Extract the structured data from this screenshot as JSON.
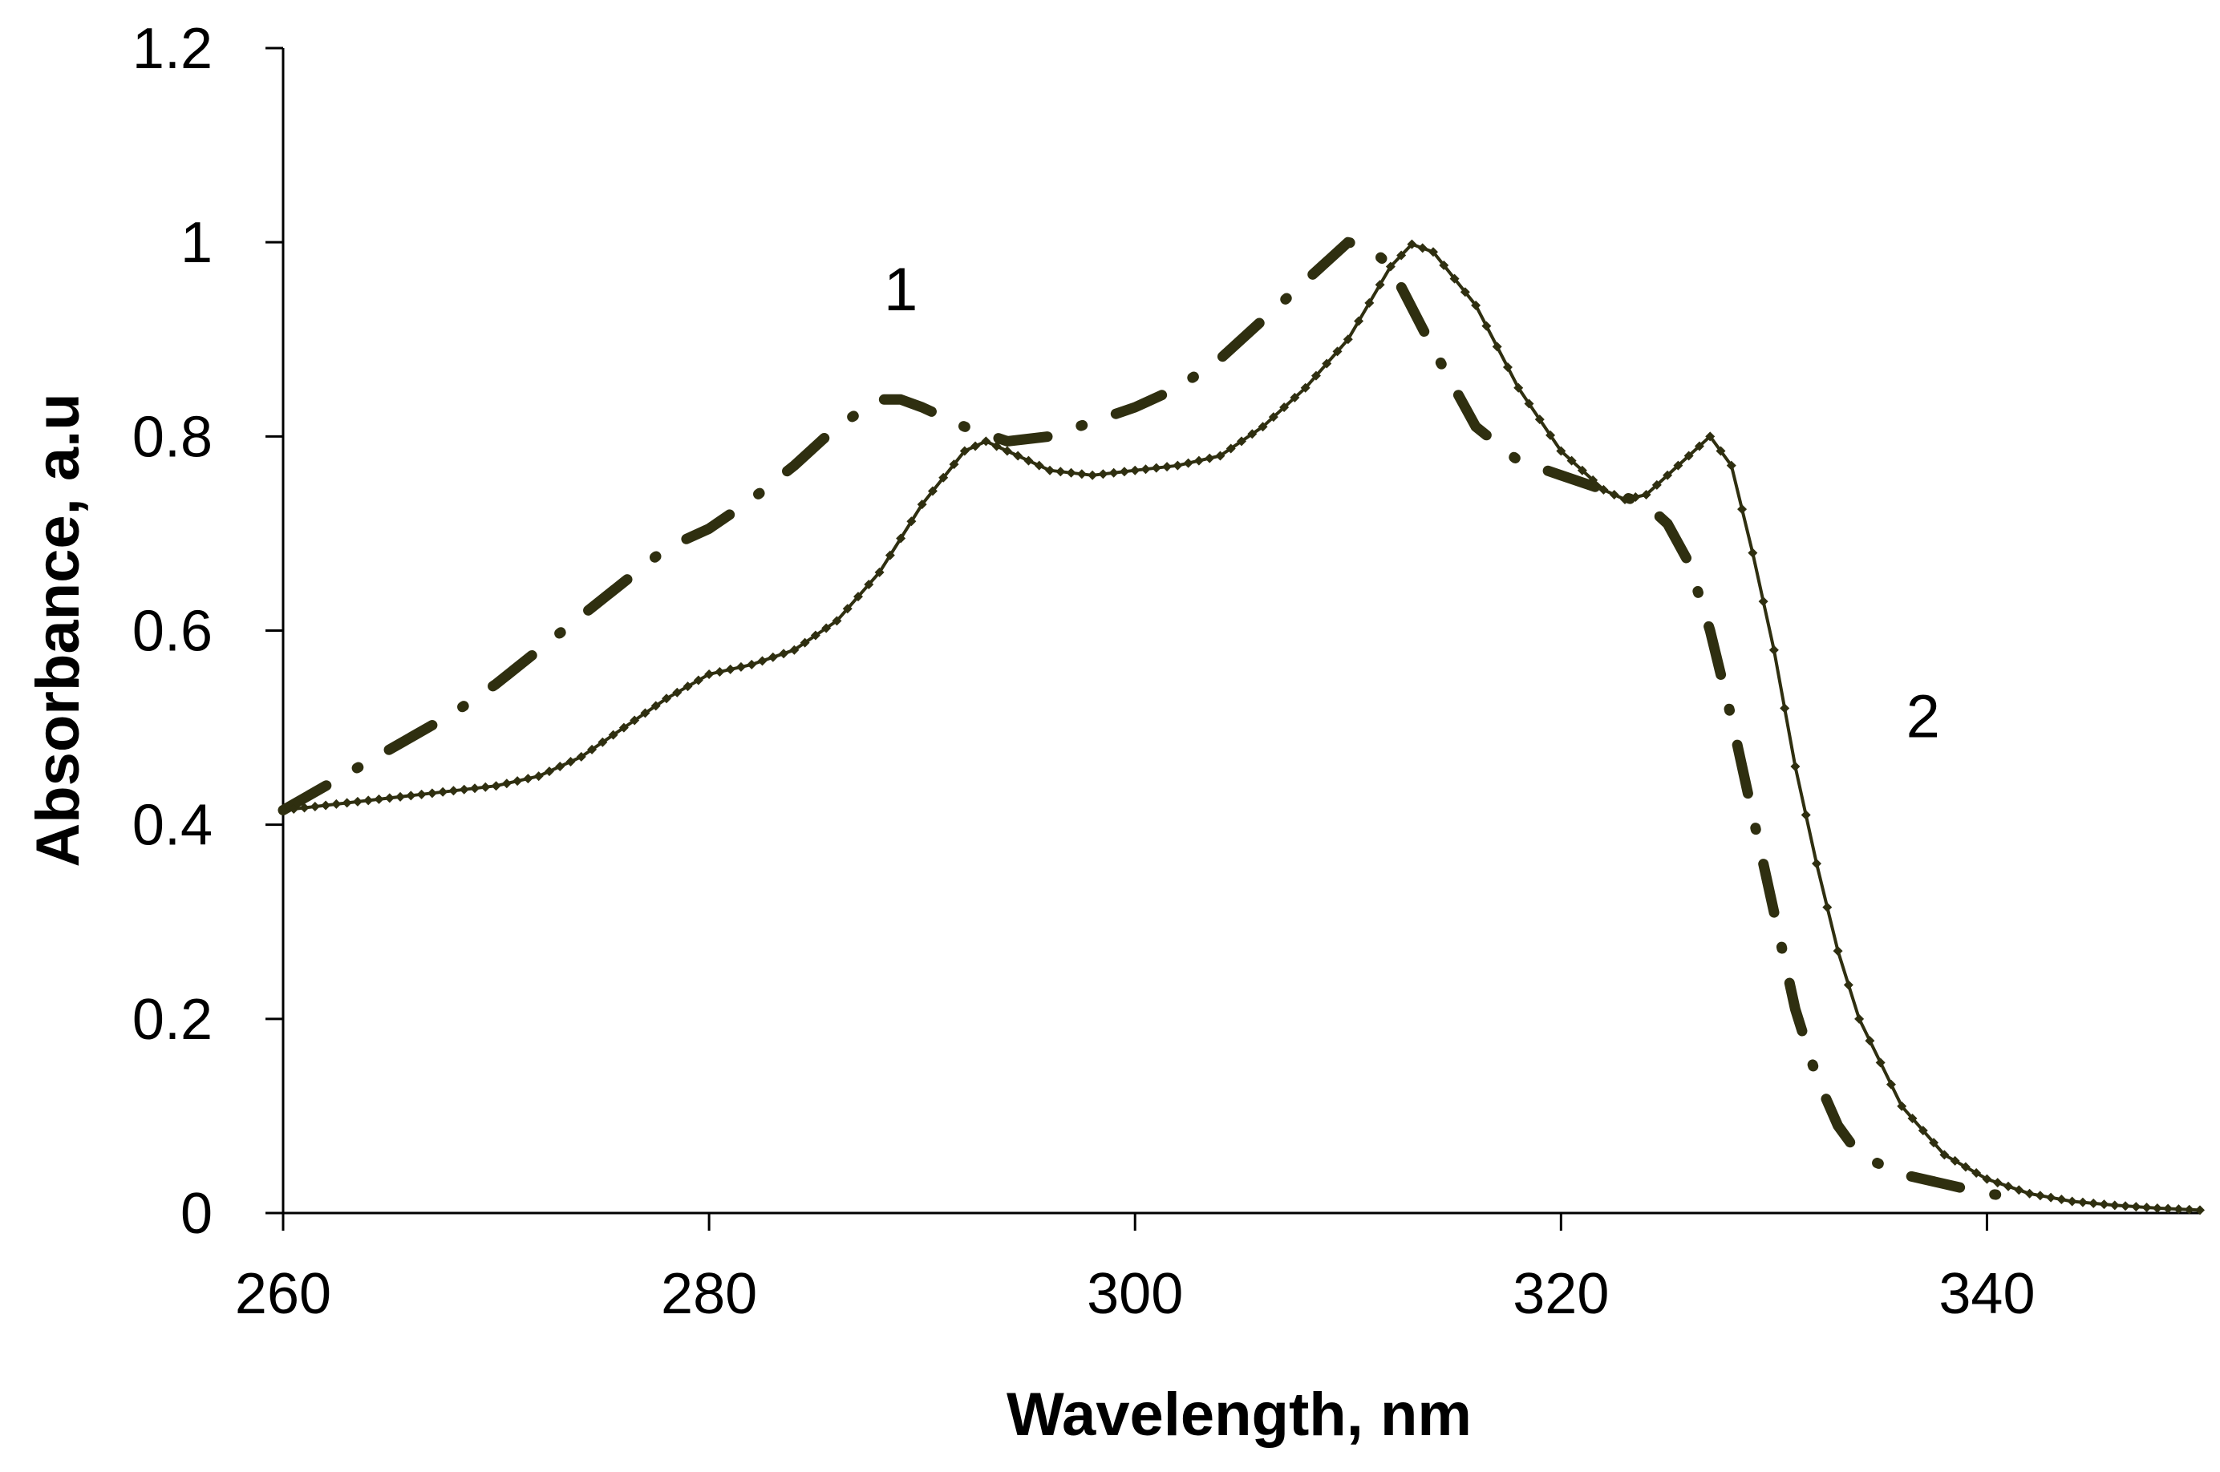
{
  "chart_data": {
    "type": "line",
    "title": "",
    "xlabel": "Wavelength, nm",
    "ylabel": "Absorbance, a.u",
    "xlim": [
      260,
      350
    ],
    "ylim": [
      0,
      1.2
    ],
    "xticks": [
      260,
      280,
      300,
      320,
      340
    ],
    "yticks": [
      0,
      0.2,
      0.4,
      0.6,
      0.8,
      1,
      1.2
    ],
    "xtick_labels": [
      "260",
      "280",
      "300",
      "320",
      "340"
    ],
    "ytick_labels": [
      "0",
      "0.2",
      "0.4",
      "0.6",
      "0.8",
      "1",
      "1.2"
    ],
    "grid": false,
    "annotations": [
      {
        "text": "1",
        "x": 289,
        "y": 0.93
      },
      {
        "text": "2",
        "x": 337,
        "y": 0.49
      }
    ],
    "series": [
      {
        "name": "1",
        "style": "dash-dot",
        "color": "#2f2f10",
        "x": [
          260,
          262,
          264,
          266,
          268,
          270,
          272,
          274,
          276,
          278,
          280,
          282,
          284,
          286,
          288,
          289,
          290,
          292,
          294,
          296,
          298,
          300,
          302,
          304,
          306,
          308,
          310,
          311,
          312,
          314,
          316,
          318,
          320,
          322,
          324,
          325,
          326,
          327,
          328,
          329,
          330,
          331,
          332,
          333,
          334,
          336,
          338,
          340,
          342
        ],
        "y": [
          0.415,
          0.44,
          0.465,
          0.49,
          0.515,
          0.545,
          0.58,
          0.615,
          0.65,
          0.685,
          0.705,
          0.735,
          0.77,
          0.81,
          0.838,
          0.838,
          0.83,
          0.81,
          0.795,
          0.8,
          0.815,
          0.83,
          0.85,
          0.88,
          0.92,
          0.96,
          1.0,
          0.995,
          0.975,
          0.89,
          0.81,
          0.775,
          0.76,
          0.745,
          0.73,
          0.71,
          0.67,
          0.6,
          0.51,
          0.41,
          0.31,
          0.21,
          0.14,
          0.09,
          0.06,
          0.04,
          0.03,
          0.02,
          0.015
        ]
      },
      {
        "name": "2",
        "style": "solid-markers",
        "color": "#2f2f10",
        "x": [
          260,
          262,
          264,
          266,
          268,
          270,
          272,
          274,
          276,
          278,
          280,
          282,
          284,
          286,
          288,
          290,
          292,
          293,
          294,
          296,
          298,
          300,
          302,
          304,
          306,
          308,
          310,
          312,
          313,
          314,
          316,
          318,
          320,
          322,
          323,
          324,
          326,
          327,
          328,
          329,
          330,
          331,
          332,
          333,
          334,
          336,
          338,
          340,
          342,
          344,
          346,
          348,
          350
        ],
        "y": [
          0.415,
          0.42,
          0.425,
          0.43,
          0.435,
          0.44,
          0.45,
          0.47,
          0.5,
          0.53,
          0.555,
          0.565,
          0.58,
          0.61,
          0.66,
          0.73,
          0.785,
          0.795,
          0.785,
          0.765,
          0.76,
          0.765,
          0.77,
          0.78,
          0.81,
          0.85,
          0.9,
          0.975,
          0.998,
          0.99,
          0.935,
          0.85,
          0.785,
          0.745,
          0.735,
          0.74,
          0.78,
          0.8,
          0.77,
          0.68,
          0.58,
          0.46,
          0.36,
          0.27,
          0.2,
          0.11,
          0.06,
          0.035,
          0.02,
          0.012,
          0.008,
          0.005,
          0.003
        ]
      }
    ]
  }
}
